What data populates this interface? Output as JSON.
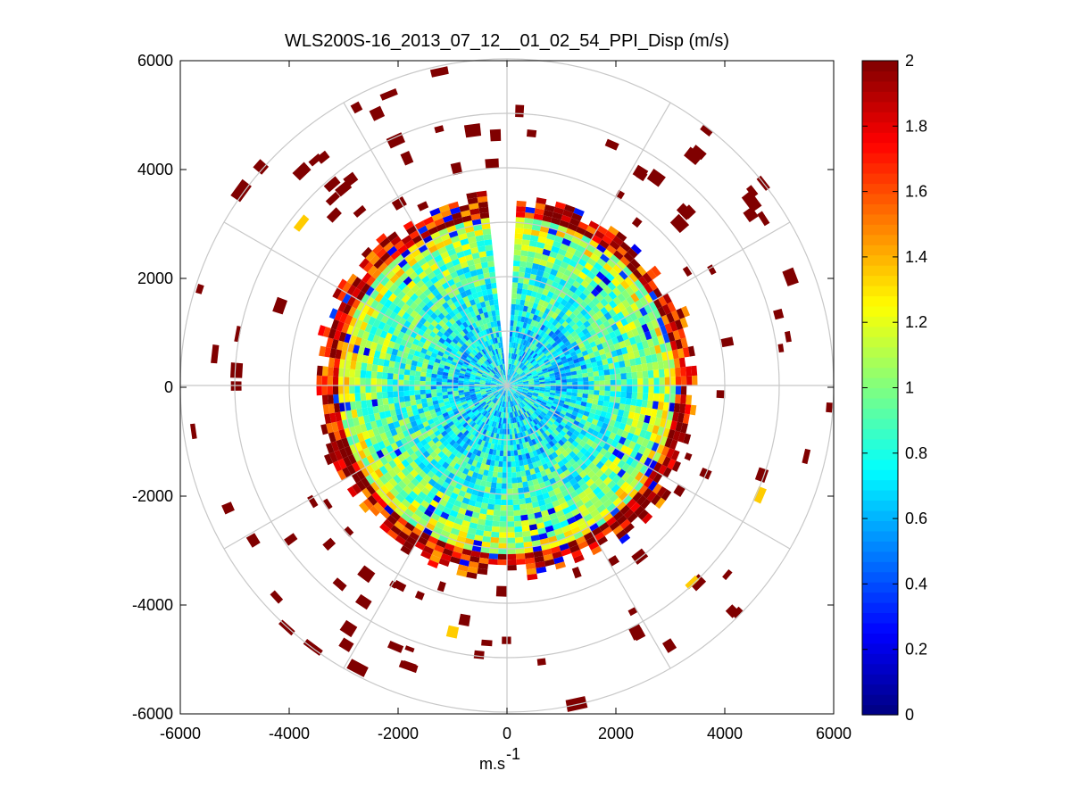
{
  "chart_data": {
    "type": "heatmap",
    "subtype": "polar PPI scan",
    "title": "WLS200S-16_2013_07_12__01_02_54_PPI_Disp (m/s)",
    "xlabel_base": "m.s",
    "xlabel_exponent": "-1",
    "xlim": [
      -6000,
      6000
    ],
    "ylim": [
      -6000,
      6000
    ],
    "xticks": [
      -6000,
      -4000,
      -2000,
      0,
      2000,
      4000,
      6000
    ],
    "yticks": [
      6000,
      4000,
      2000,
      0,
      -2000,
      -4000,
      -6000
    ],
    "xtick_labels": [
      "-6000",
      "-4000",
      "-2000",
      "0",
      "2000",
      "4000",
      "6000"
    ],
    "ytick_labels": [
      "6000",
      "4000",
      "2000",
      "0",
      "-2000",
      "-4000",
      "-6000"
    ],
    "polar_grid": {
      "ring_radii": [
        1000,
        2000,
        3000,
        4000,
        5000,
        6000
      ],
      "spoke_angles_deg": [
        0,
        30,
        60,
        90,
        120,
        150,
        180,
        210,
        240,
        270,
        300,
        330
      ],
      "grid_color": "#c8c8c8"
    },
    "colorbar": {
      "min": 0,
      "max": 2,
      "ticks": [
        0,
        0.2,
        0.4,
        0.6,
        0.8,
        1,
        1.2,
        1.4,
        1.6,
        1.8,
        2
      ],
      "tick_labels": [
        "0",
        "0.2",
        "0.4",
        "0.6",
        "0.8",
        "1",
        "1.2",
        "1.4",
        "1.6",
        "1.8",
        "2"
      ],
      "colormap": "jet"
    },
    "field_description": {
      "dense_region_max_range_m": 3400,
      "missing_sector_deg": [
        88,
        94
      ],
      "range_bands_m": [
        [
          0,
          1500,
          0.72
        ],
        [
          1500,
          2300,
          0.85
        ],
        [
          2300,
          2800,
          1.0
        ],
        [
          2800,
          3100,
          1.15
        ],
        [
          3100,
          3400,
          1.7
        ]
      ],
      "sparse_far_value": 2
    }
  }
}
